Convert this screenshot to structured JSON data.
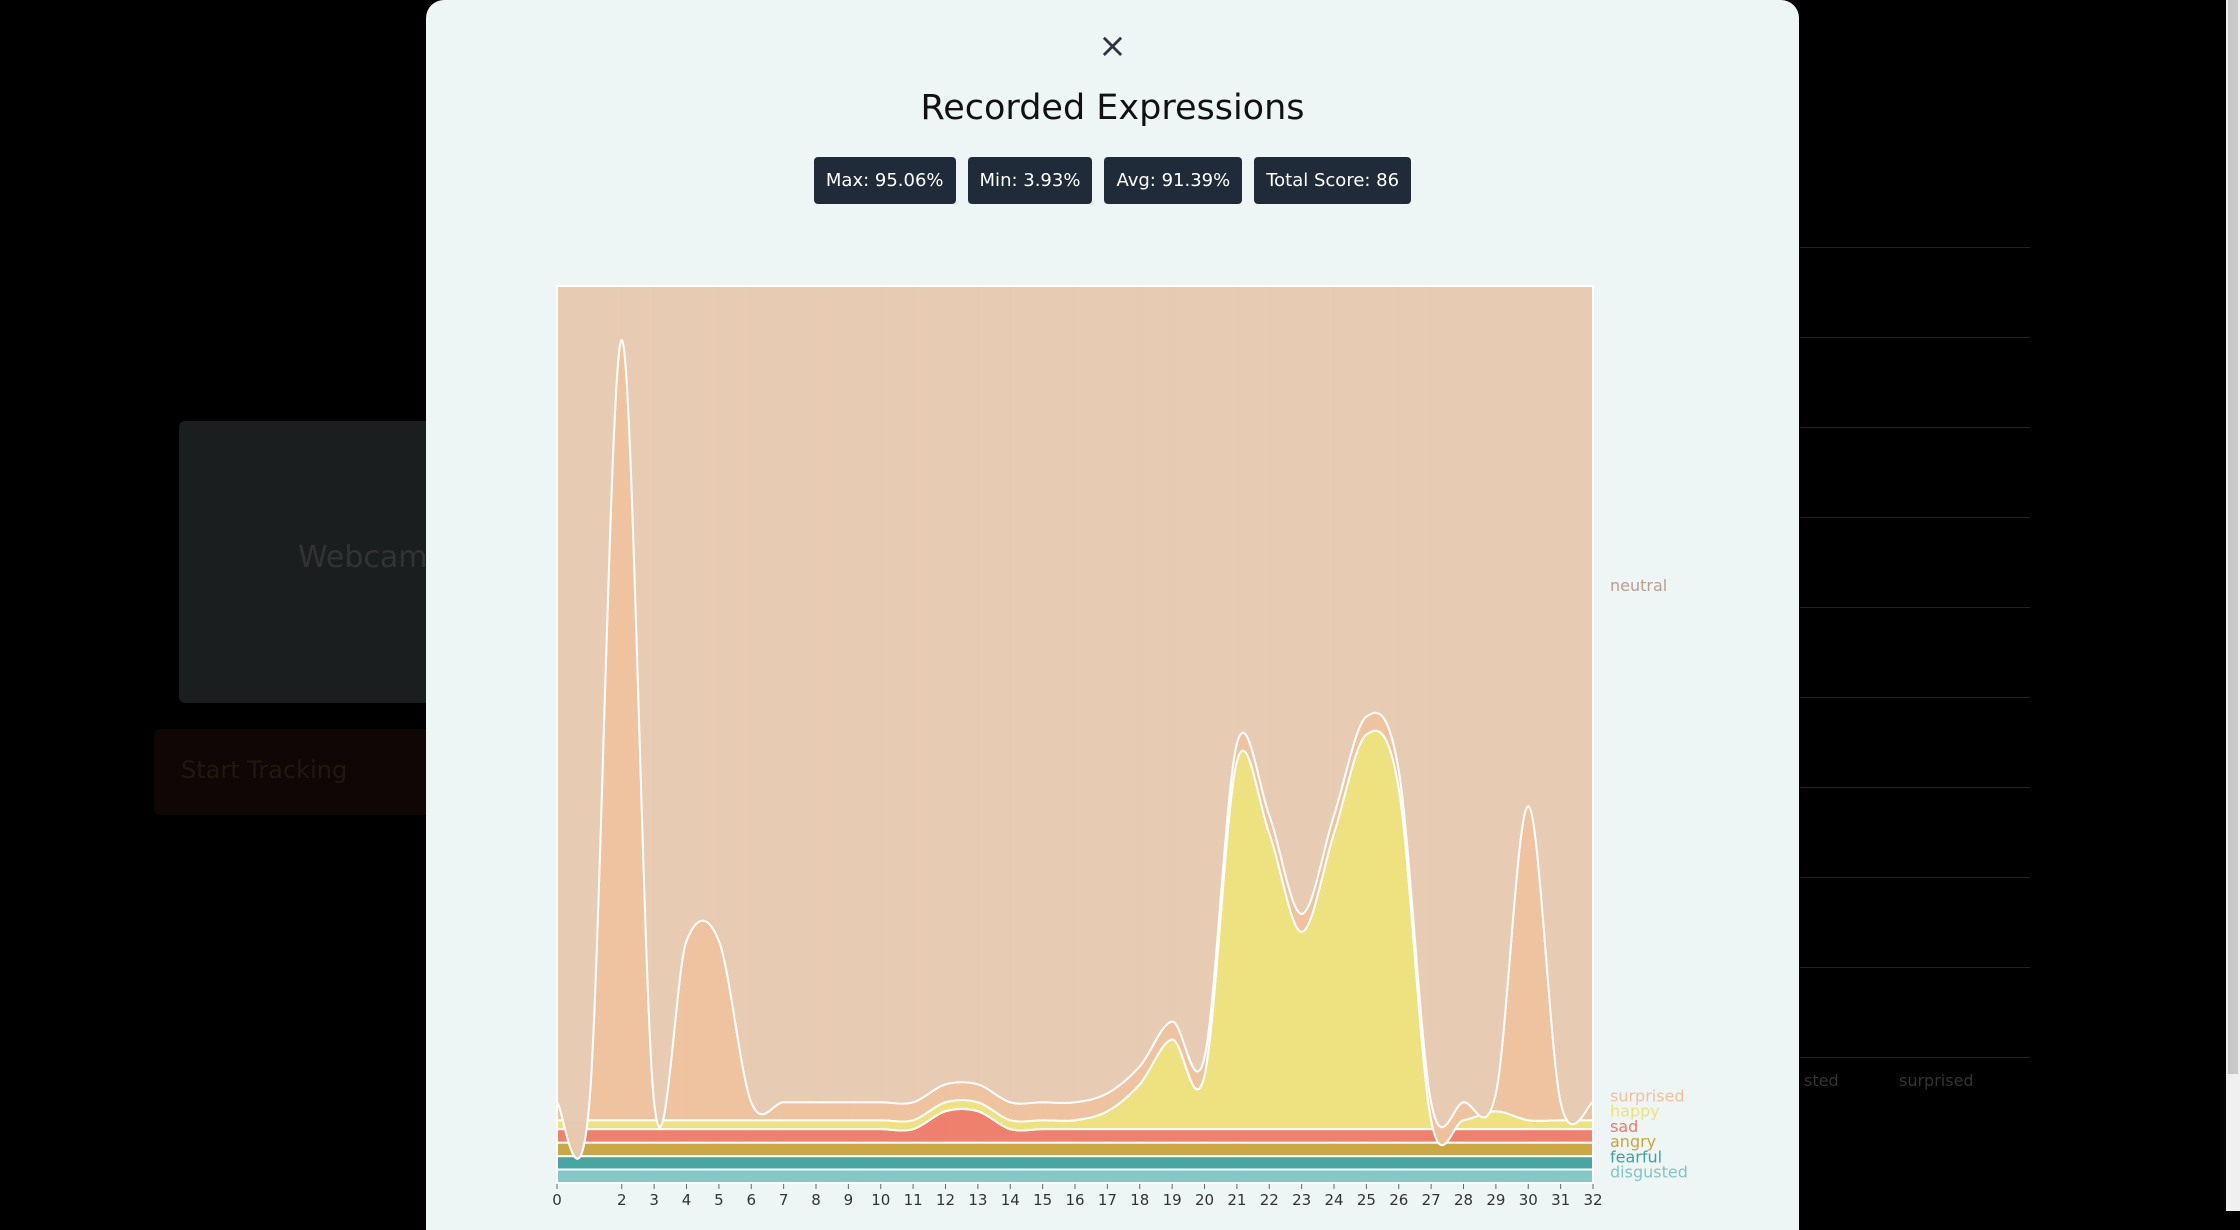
{
  "background": {
    "webcam_label": "Webcam",
    "start_button": "Start Tracking",
    "legend_labels": [
      "sted",
      "surprised"
    ]
  },
  "modal": {
    "close": "×",
    "title": "Recorded Expressions",
    "stats": [
      "Max: 95.06%",
      "Min: 3.93%",
      "Avg: 91.39%",
      "Total Score: 86"
    ]
  },
  "chart_data": {
    "type": "stacked-area",
    "x": [
      0,
      1,
      2,
      3,
      4,
      5,
      6,
      7,
      8,
      9,
      10,
      11,
      12,
      13,
      14,
      15,
      16,
      17,
      18,
      19,
      20,
      21,
      22,
      23,
      24,
      25,
      26,
      27,
      28,
      29,
      30,
      31,
      32
    ],
    "xlim": [
      0,
      32
    ],
    "xticks": [
      0,
      2,
      3,
      4,
      5,
      6,
      7,
      8,
      9,
      10,
      11,
      12,
      13,
      14,
      15,
      16,
      17,
      18,
      19,
      20,
      21,
      22,
      23,
      24,
      25,
      26,
      27,
      28,
      29,
      30,
      31,
      32
    ],
    "ylim": [
      0,
      1
    ],
    "grid": true,
    "series": [
      {
        "name": "disgusted",
        "color": "#7fc6c4",
        "values": [
          0.015,
          0.015,
          0.015,
          0.015,
          0.015,
          0.015,
          0.015,
          0.015,
          0.015,
          0.015,
          0.015,
          0.015,
          0.015,
          0.015,
          0.015,
          0.015,
          0.015,
          0.015,
          0.015,
          0.015,
          0.015,
          0.015,
          0.015,
          0.015,
          0.015,
          0.015,
          0.015,
          0.015,
          0.015,
          0.015,
          0.015,
          0.015,
          0.015
        ]
      },
      {
        "name": "fearful",
        "color": "#3fa39c",
        "values": [
          0.015,
          0.015,
          0.015,
          0.015,
          0.015,
          0.015,
          0.015,
          0.015,
          0.015,
          0.015,
          0.015,
          0.015,
          0.015,
          0.015,
          0.015,
          0.015,
          0.015,
          0.015,
          0.015,
          0.015,
          0.015,
          0.015,
          0.015,
          0.015,
          0.015,
          0.015,
          0.015,
          0.015,
          0.015,
          0.015,
          0.015,
          0.015,
          0.015
        ]
      },
      {
        "name": "angry",
        "color": "#c9a43c",
        "values": [
          0.015,
          0.015,
          0.015,
          0.015,
          0.015,
          0.015,
          0.015,
          0.015,
          0.015,
          0.015,
          0.015,
          0.015,
          0.015,
          0.015,
          0.015,
          0.015,
          0.015,
          0.015,
          0.015,
          0.015,
          0.015,
          0.015,
          0.015,
          0.015,
          0.015,
          0.015,
          0.015,
          0.015,
          0.015,
          0.015,
          0.015,
          0.015,
          0.015
        ]
      },
      {
        "name": "sad",
        "color": "#f07a66",
        "values": [
          0.015,
          0.015,
          0.015,
          0.015,
          0.015,
          0.015,
          0.015,
          0.015,
          0.015,
          0.015,
          0.015,
          0.015,
          0.035,
          0.035,
          0.015,
          0.015,
          0.015,
          0.015,
          0.015,
          0.015,
          0.015,
          0.015,
          0.015,
          0.015,
          0.015,
          0.015,
          0.015,
          0.015,
          0.015,
          0.015,
          0.015,
          0.015,
          0.015
        ]
      },
      {
        "name": "happy",
        "color": "#efe27a",
        "values": [
          0.01,
          0.01,
          0.01,
          0.01,
          0.01,
          0.01,
          0.01,
          0.01,
          0.01,
          0.01,
          0.01,
          0.01,
          0.01,
          0.01,
          0.01,
          0.01,
          0.01,
          0.02,
          0.05,
          0.1,
          0.06,
          0.41,
          0.33,
          0.22,
          0.33,
          0.44,
          0.38,
          0.01,
          0.01,
          0.02,
          0.01,
          0.01,
          0.01
        ]
      },
      {
        "name": "surprised",
        "color": "#f0c09c",
        "values": [
          0.02,
          0.02,
          0.87,
          0.02,
          0.2,
          0.2,
          0.02,
          0.02,
          0.02,
          0.02,
          0.02,
          0.02,
          0.02,
          0.02,
          0.02,
          0.02,
          0.02,
          0.02,
          0.02,
          0.02,
          0.02,
          0.02,
          0.02,
          0.02,
          0.02,
          0.02,
          0.02,
          0.02,
          0.02,
          0.02,
          0.35,
          0.02,
          0.02
        ]
      },
      {
        "name": "neutral",
        "color": "#e8c9b0",
        "values": [
          0.91,
          0.91,
          0.06,
          0.91,
          0.73,
          0.73,
          0.91,
          0.91,
          0.91,
          0.91,
          0.91,
          0.91,
          0.89,
          0.89,
          0.91,
          0.91,
          0.91,
          0.9,
          0.87,
          0.82,
          0.86,
          0.51,
          0.59,
          0.7,
          0.59,
          0.48,
          0.54,
          0.91,
          0.91,
          0.9,
          0.58,
          0.91,
          0.91
        ]
      }
    ]
  }
}
